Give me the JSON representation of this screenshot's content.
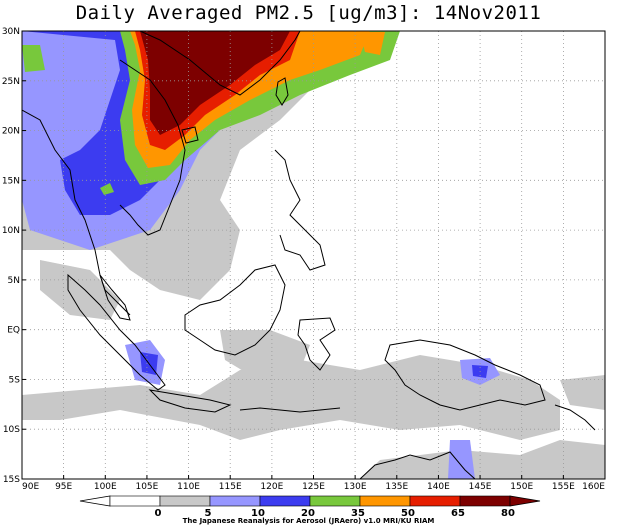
{
  "title": "Daily Averaged PM2.5 [ug/m3]: 14Nov2011",
  "credit": "The Japanese Reanalysis for Aerosol (JRAero) v1.0 MRI/KU RIAM",
  "map": {
    "lon_range": [
      90,
      160
    ],
    "lat_range": [
      -15,
      30
    ],
    "lon_labels": [
      "90E",
      "95E",
      "100E",
      "105E",
      "110E",
      "115E",
      "120E",
      "125E",
      "130E",
      "135E",
      "140E",
      "145E",
      "150E",
      "155E",
      "160E"
    ],
    "lat_labels": [
      "30N",
      "25N",
      "20N",
      "15N",
      "10N",
      "5N",
      "EQ",
      "5S",
      "10S",
      "15S"
    ],
    "gridlines": "dotted"
  },
  "colorbar": {
    "levels": [
      "0",
      "5",
      "10",
      "20",
      "35",
      "50",
      "65",
      "80"
    ],
    "colors": [
      "#ffffff",
      "#ffffff",
      "#c8c8c8",
      "#9696ff",
      "#3c3cf0",
      "#78c83c",
      "#ff9600",
      "#e61e00",
      "#7d0000"
    ]
  }
}
